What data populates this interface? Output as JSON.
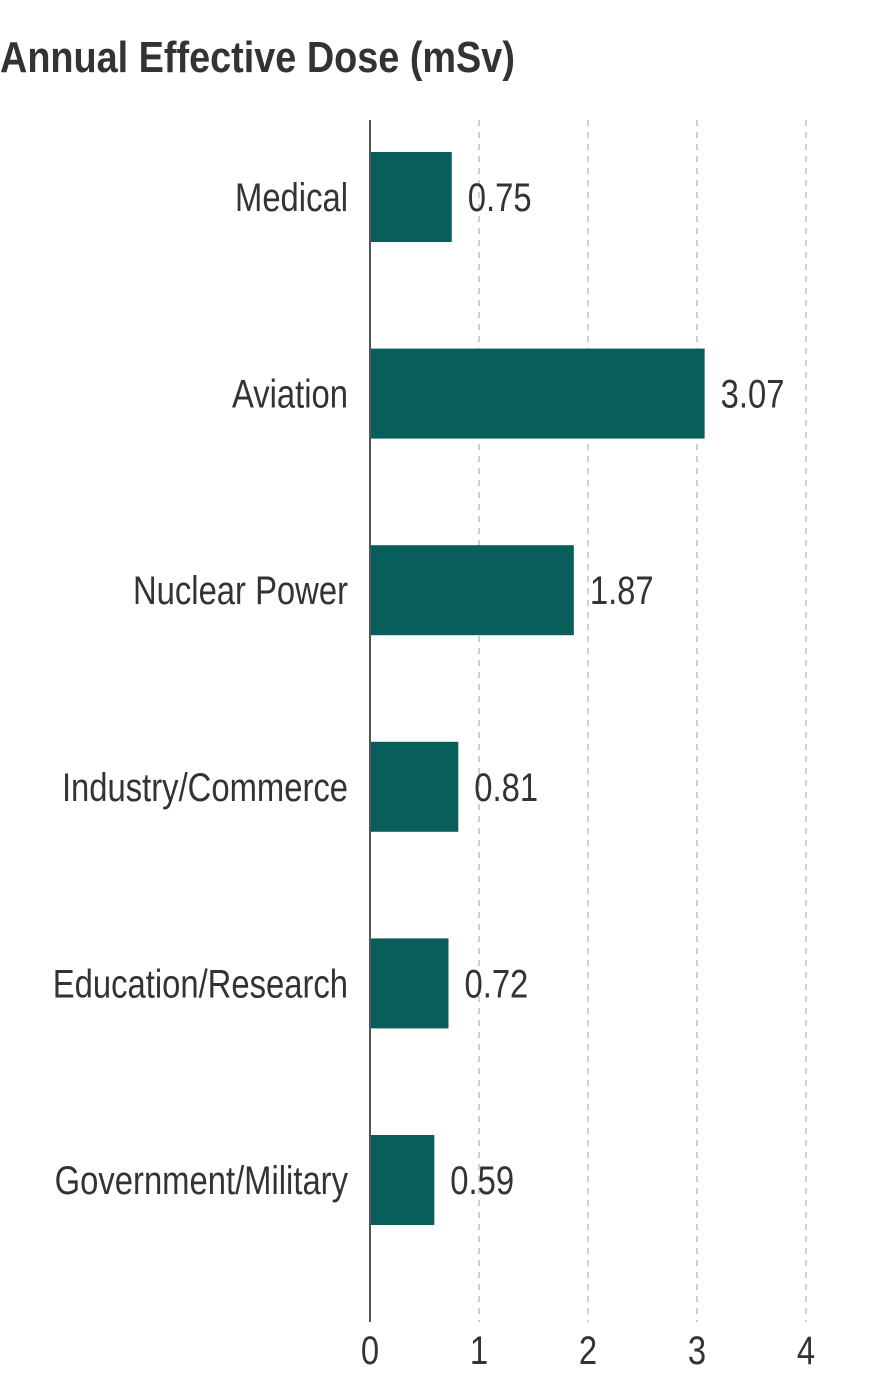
{
  "chart_data": {
    "type": "bar",
    "orientation": "horizontal",
    "title": "Annual Effective Dose (mSv)",
    "categories": [
      "Medical",
      "Aviation",
      "Nuclear Power",
      "Industry/Commerce",
      "Education/Research",
      "Government/Military"
    ],
    "values": [
      0.75,
      3.07,
      1.87,
      0.81,
      0.72,
      0.59
    ],
    "data_labels": [
      "0.75",
      "3.07",
      "1.87",
      "0.81",
      "0.72",
      "0.59"
    ],
    "xlim": [
      0,
      4
    ],
    "xticks": [
      "0",
      "1",
      "2",
      "3",
      "4"
    ],
    "xlabel": "",
    "ylabel": "",
    "grid": "vertical dashed",
    "colors": {
      "bar": "#075e5a",
      "text": "#333333",
      "grid": "#d0d0d0",
      "axis": "#555555"
    }
  }
}
